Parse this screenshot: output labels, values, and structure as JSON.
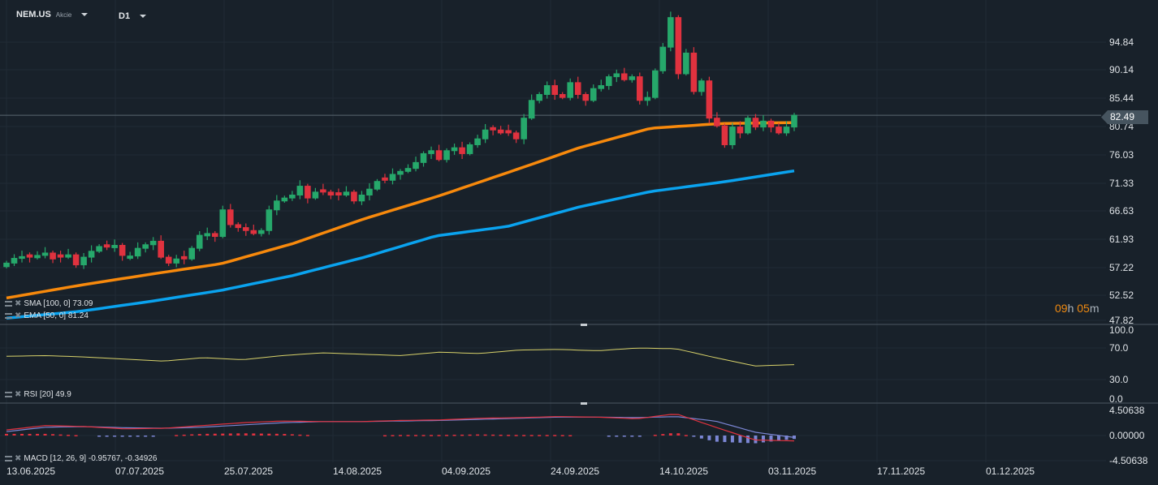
{
  "header": {
    "symbol": "NEM.US",
    "type": "Akcie",
    "timeframe": "D1"
  },
  "price_axis": [
    "94.84",
    "90.14",
    "85.44",
    "80.74",
    "76.03",
    "71.33",
    "66.63",
    "61.93",
    "57.22",
    "52.52",
    "47.82"
  ],
  "current_price": "82.49",
  "timer": {
    "hours": "09",
    "h": "h",
    "minutes": "05",
    "m": "m"
  },
  "indicators": {
    "sma": "SMA [100, 0] 73.09",
    "ema": "EMA [50, 0] 81.24",
    "rsi": "RSI [20] 49.9",
    "macd": "MACD [12, 26, 9] -0.95767, -0.34926"
  },
  "rsi_axis": [
    "100.0",
    "70.0",
    "30.0",
    "0.0"
  ],
  "macd_axis": [
    "4.50638",
    "0.00000",
    "-4.50638"
  ],
  "dates": [
    "13.06.2025",
    "07.07.2025",
    "25.07.2025",
    "14.08.2025",
    "04.09.2025",
    "24.09.2025",
    "14.10.2025",
    "03.11.2025",
    "17.11.2025",
    "01.12.2025"
  ],
  "colors": {
    "up": "#26a86b",
    "down": "#e0323f",
    "ema": "#f7890c",
    "sma": "#0aa3ef",
    "rsi": "#d8d26a",
    "macd": "#e0323f",
    "signal": "#7b86d4"
  },
  "chart_data": {
    "type": "candlestick",
    "ylim": [
      47.82,
      94.84
    ],
    "closes": [
      57.5,
      58.3,
      58.6,
      58.5,
      58.8,
      59.2,
      58.2,
      58.5,
      58.9,
      57.2,
      58.5,
      59.5,
      60.3,
      60.2,
      60.5,
      58.8,
      58.7,
      60.0,
      60.6,
      61.2,
      58.5,
      57.5,
      58.2,
      58.2,
      60.0,
      62.2,
      62.5,
      62.0,
      66.5,
      64.0,
      63.5,
      63.0,
      62.5,
      63.0,
      66.5,
      68.0,
      68.5,
      69.0,
      70.5,
      68.5,
      69.5,
      69.5,
      69.0,
      69.0,
      69.5,
      68.0,
      69.0,
      70.0,
      71.3,
      71.5,
      72.5,
      73.0,
      73.5,
      74.5,
      76.0,
      76.5,
      75.0,
      76.5,
      77.0,
      76.0,
      77.5,
      78.5,
      80.0,
      80.0,
      79.5,
      79.5,
      78.5,
      82.0,
      85.0,
      86.0,
      87.5,
      86.0,
      85.5,
      88.0,
      86.0,
      85.0,
      87.0,
      87.5,
      89.0,
      89.5,
      88.5,
      89.0,
      85.0,
      85.5,
      90.0,
      94.0,
      99.0,
      89.5,
      93.0,
      86.5,
      88.3,
      82.0,
      80.7,
      77.5,
      80.5,
      79.5,
      82.0,
      80.5,
      81.5,
      80.5,
      79.5,
      80.5,
      82.49
    ],
    "ema50_samples": [
      51.6,
      53.7,
      55.6,
      57.4,
      60.8,
      65.0,
      68.7,
      72.8,
      77.0,
      80.3,
      81.1,
      81.24
    ],
    "sma100_samples": [
      48.2,
      49.3,
      51.0,
      52.9,
      55.4,
      58.5,
      62.1,
      63.7,
      67.0,
      69.6,
      71.2,
      73.09
    ],
    "rsi_samples": [
      62,
      63,
      61,
      58,
      55,
      60,
      57,
      63,
      67,
      65,
      63,
      68,
      66,
      71,
      72,
      70,
      74,
      73,
      60,
      48,
      49.9
    ],
    "macd_samples": [
      1.0,
      1.8,
      1.6,
      1.2,
      1.3,
      1.8,
      2.3,
      2.6,
      2.5,
      2.5,
      2.7,
      2.8,
      3.1,
      3.2,
      3.4,
      3.3,
      3.0,
      3.9,
      1.5,
      -0.8,
      -0.96
    ],
    "signal_samples": [
      0.7,
      1.5,
      1.6,
      1.4,
      1.3,
      1.5,
      1.9,
      2.3,
      2.5,
      2.5,
      2.6,
      2.7,
      2.9,
      3.1,
      3.3,
      3.3,
      3.2,
      3.4,
      2.6,
      0.6,
      -0.35
    ]
  }
}
